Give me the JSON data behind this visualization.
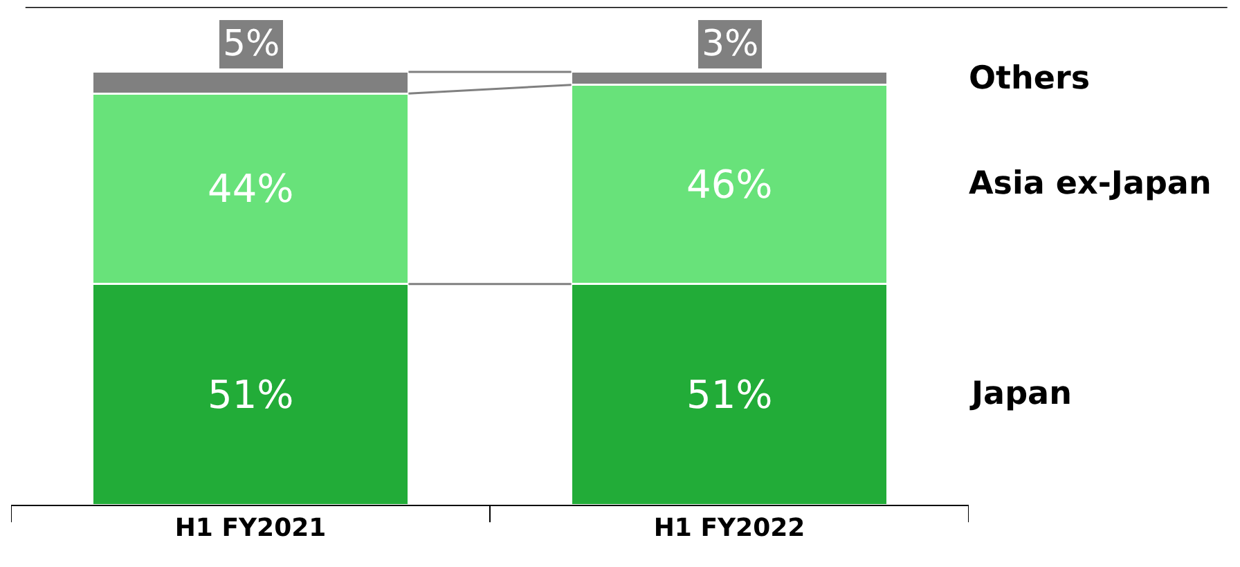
{
  "chart_data": {
    "type": "bar",
    "stacked": true,
    "categories": [
      "H1 FY2021",
      "H1 FY2022"
    ],
    "series": [
      {
        "name": "Japan",
        "color": "#22ac38",
        "values": [
          51,
          51
        ],
        "value_labels": [
          "51%",
          "51%"
        ]
      },
      {
        "name": "Asia ex-Japan",
        "color": "#68e27a",
        "values": [
          44,
          46
        ],
        "value_labels": [
          "44%",
          "46%"
        ]
      },
      {
        "name": "Others",
        "color": "#808080",
        "values": [
          5,
          3
        ],
        "value_labels": [
          "5%",
          "3%"
        ]
      }
    ],
    "ylim": [
      0,
      115
    ],
    "tick_labels": "x",
    "grid": false,
    "legend": false
  }
}
